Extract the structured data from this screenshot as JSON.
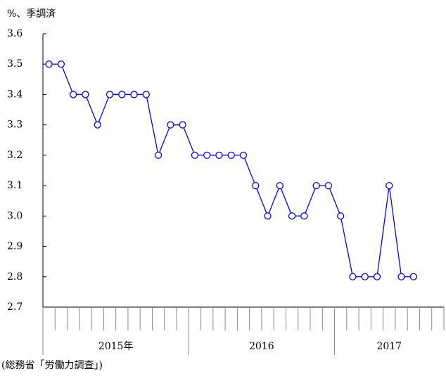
{
  "chart_data": {
    "type": "line",
    "unit_label": "%、季調済",
    "source": "(総務省「労働力調査」)",
    "categories": [
      null,
      null,
      null,
      null,
      null,
      null,
      null,
      null,
      null,
      null,
      null,
      null,
      null,
      null,
      null,
      null,
      null,
      null,
      null,
      null,
      null,
      null,
      null,
      null,
      null,
      null,
      null,
      null,
      null,
      null,
      null,
      null,
      null
    ],
    "year_labels": [
      "2015年",
      "2016",
      "2017"
    ],
    "series": [
      {
        "color": "#0000ff",
        "values": [
          3.5,
          3.5,
          3.4,
          3.4,
          3.3,
          3.4,
          3.4,
          3.4,
          3.4,
          3.2,
          3.3,
          3.3,
          3.2,
          3.2,
          3.2,
          3.2,
          3.2,
          3.1,
          3.0,
          3.1,
          3.0,
          3.0,
          3.1,
          3.1,
          3.0,
          2.8,
          2.8,
          2.8,
          3.1,
          2.8,
          2.8,
          null,
          null
        ]
      }
    ],
    "ylim": [
      2.7,
      3.6
    ],
    "yticks": [
      2.7,
      2.8,
      2.9,
      {
        "value": 3,
        "label": "3.0"
      },
      3.1,
      3.2,
      3.3,
      3.4,
      3.5,
      3.6
    ]
  }
}
